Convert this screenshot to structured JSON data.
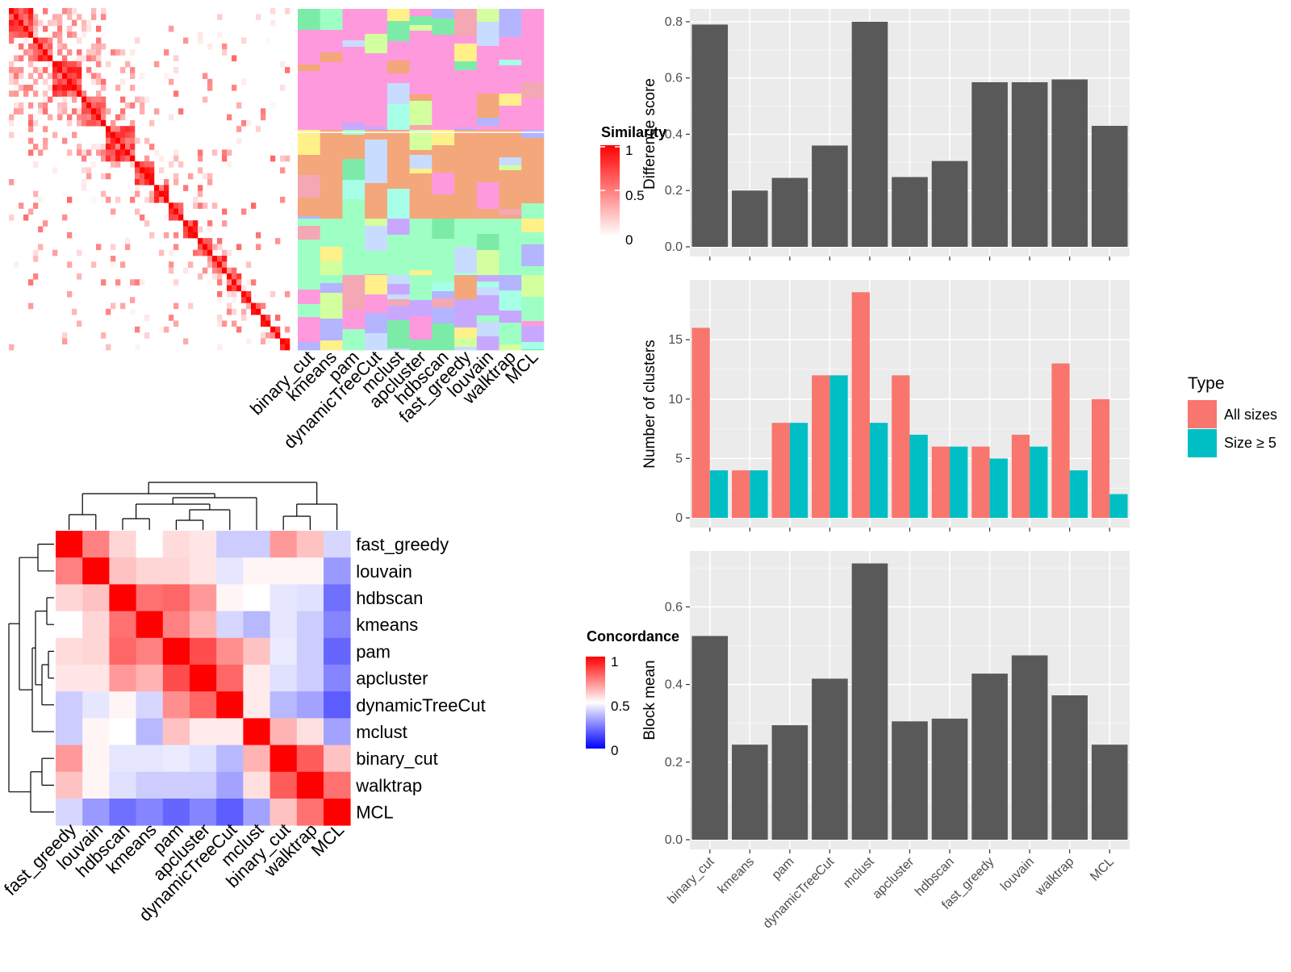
{
  "colors": {
    "panel_bg": "#ebebeb",
    "grid": "#ffffff",
    "bar": "#595959",
    "all_sizes": "#f8766d",
    "size5": "#00bfc4",
    "heat_high": "#ff0000",
    "heat_mid": "#ffffff",
    "heat_low": "#0000ff"
  },
  "similarity_legend": {
    "title": "Similarity",
    "ticks": [
      "1",
      "0.5",
      "0"
    ]
  },
  "concordance_legend": {
    "title": "Concordance",
    "ticks": [
      "1",
      "0.5",
      "0"
    ]
  },
  "method_labels_top": [
    "binary_cut",
    "kmeans",
    "pam",
    "dynamicTreeCut",
    "mclust",
    "apcluster",
    "hdbscan",
    "fast_greedy",
    "louvain",
    "walktrap",
    "MCL"
  ],
  "chart_data": [
    {
      "type": "heatmap",
      "name": "concordance",
      "rows": [
        "fast_greedy",
        "louvain",
        "hdbscan",
        "kmeans",
        "pam",
        "apcluster",
        "dynamicTreeCut",
        "mclust",
        "binary_cut",
        "walktrap",
        "MCL"
      ],
      "cols": [
        "fast_greedy",
        "louvain",
        "hdbscan",
        "kmeans",
        "pam",
        "apcluster",
        "dynamicTreeCut",
        "mclust",
        "binary_cut",
        "walktrap",
        "MCL"
      ],
      "values": [
        [
          1.0,
          0.75,
          0.58,
          0.5,
          0.57,
          0.55,
          0.4,
          0.4,
          0.7,
          0.62,
          0.42
        ],
        [
          0.75,
          1.0,
          0.62,
          0.58,
          0.58,
          0.55,
          0.45,
          0.52,
          0.52,
          0.52,
          0.3
        ],
        [
          0.58,
          0.62,
          1.0,
          0.78,
          0.8,
          0.7,
          0.52,
          0.5,
          0.45,
          0.44,
          0.22
        ],
        [
          0.5,
          0.58,
          0.78,
          1.0,
          0.75,
          0.65,
          0.42,
          0.36,
          0.45,
          0.4,
          0.26
        ],
        [
          0.57,
          0.58,
          0.8,
          0.75,
          1.0,
          0.85,
          0.72,
          0.62,
          0.46,
          0.4,
          0.2
        ],
        [
          0.55,
          0.55,
          0.7,
          0.65,
          0.85,
          1.0,
          0.8,
          0.54,
          0.44,
          0.4,
          0.26
        ],
        [
          0.4,
          0.45,
          0.52,
          0.42,
          0.72,
          0.8,
          1.0,
          0.54,
          0.36,
          0.32,
          0.18
        ],
        [
          0.4,
          0.52,
          0.5,
          0.36,
          0.62,
          0.54,
          0.54,
          1.0,
          0.65,
          0.56,
          0.32
        ],
        [
          0.7,
          0.52,
          0.45,
          0.45,
          0.46,
          0.44,
          0.36,
          0.65,
          1.0,
          0.82,
          0.62
        ],
        [
          0.62,
          0.52,
          0.44,
          0.4,
          0.4,
          0.4,
          0.32,
          0.56,
          0.82,
          1.0,
          0.78
        ],
        [
          0.42,
          0.3,
          0.22,
          0.26,
          0.2,
          0.26,
          0.18,
          0.32,
          0.62,
          0.78,
          1.0
        ]
      ],
      "legend_title": "Concordance"
    },
    {
      "type": "bar",
      "name": "difference_score",
      "categories": [
        "binary_cut",
        "kmeans",
        "pam",
        "dynamicTreeCut",
        "mclust",
        "apcluster",
        "hdbscan",
        "fast_greedy",
        "louvain",
        "walktrap",
        "MCL"
      ],
      "values": [
        0.79,
        0.2,
        0.245,
        0.36,
        0.8,
        0.248,
        0.305,
        0.585,
        0.585,
        0.595,
        0.43
      ],
      "ylabel": "Difference score",
      "yticks": [
        "0.0",
        "0.2",
        "0.4",
        "0.6",
        "0.8"
      ],
      "ylim": [
        0,
        0.84
      ]
    },
    {
      "type": "bar",
      "name": "number_of_clusters",
      "categories": [
        "binary_cut",
        "kmeans",
        "pam",
        "dynamicTreeCut",
        "mclust",
        "apcluster",
        "hdbscan",
        "fast_greedy",
        "louvain",
        "walktrap",
        "MCL"
      ],
      "series": [
        {
          "name": "All sizes",
          "values": [
            16,
            4,
            8,
            12,
            19,
            12,
            6,
            6,
            7,
            13,
            10
          ]
        },
        {
          "name": "Size ≥ 5",
          "values": [
            4,
            4,
            8,
            12,
            8,
            7,
            6,
            5,
            6,
            4,
            2
          ]
        }
      ],
      "ylabel": "Number of clusters",
      "yticks": [
        "0",
        "5",
        "10",
        "15"
      ],
      "ylim": [
        0,
        19.9
      ],
      "legend_title": "Type",
      "legend_position": "right"
    },
    {
      "type": "bar",
      "name": "block_mean",
      "categories": [
        "binary_cut",
        "kmeans",
        "pam",
        "dynamicTreeCut",
        "mclust",
        "apcluster",
        "hdbscan",
        "fast_greedy",
        "louvain",
        "walktrap",
        "MCL"
      ],
      "values": [
        0.525,
        0.245,
        0.295,
        0.415,
        0.712,
        0.305,
        0.312,
        0.428,
        0.475,
        0.372,
        0.245
      ],
      "ylabel": "Block mean",
      "yticks": [
        "0.0",
        "0.2",
        "0.4",
        "0.6"
      ],
      "ylim": [
        0,
        0.74
      ]
    }
  ]
}
